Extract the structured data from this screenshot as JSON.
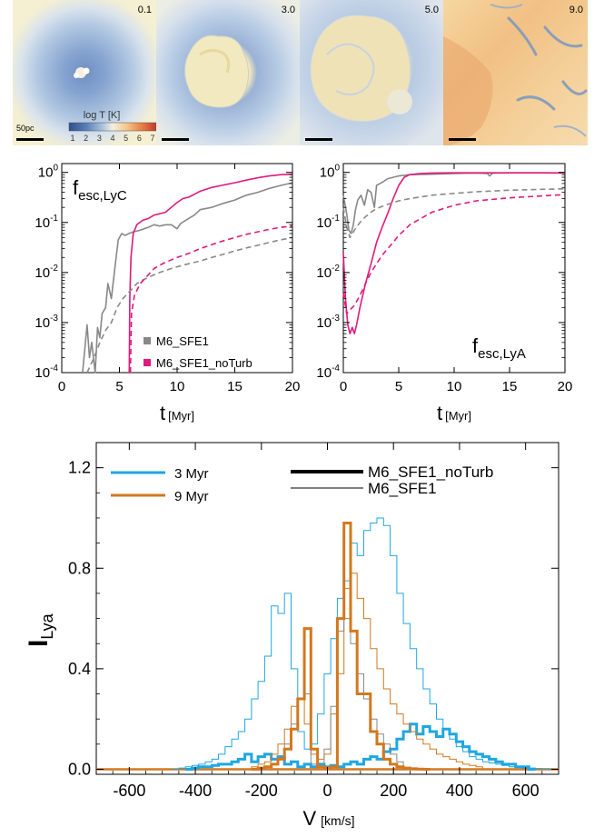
{
  "panels": [
    {
      "time_label": "0.1",
      "scalebar_label": "50pc"
    },
    {
      "time_label": "3.0",
      "scalebar_label": ""
    },
    {
      "time_label": "5.0",
      "scalebar_label": ""
    },
    {
      "time_label": "9.0",
      "scalebar_label": ""
    }
  ],
  "colorbar": {
    "title": "log T [K]",
    "ticks": [
      "1",
      "2",
      "3",
      "4",
      "5",
      "6",
      "7"
    ],
    "colors": [
      "#2f4f8f",
      "#5b7fb8",
      "#a9c1dc",
      "#f3f0dc",
      "#f4c78a",
      "#e8804a",
      "#c23b2b"
    ]
  },
  "colors": {
    "gray": "#888888",
    "magenta": "#e0197d",
    "cyan": "#1ea7e1",
    "orange": "#d2781e",
    "panel_blue": "#bcd0e6",
    "panel_cream": "#f3eed2",
    "panel_orange": "#f2c48a"
  },
  "chart_data": [
    {
      "type": "line",
      "name_label": "f",
      "name_sub": "esc,LyC",
      "xlabel": "t",
      "xunit": "[Myr]",
      "xlim": [
        0,
        20
      ],
      "ylim": [
        0.0001,
        1.5
      ],
      "yscale": "log",
      "xticks": [
        0,
        5,
        10,
        15,
        20
      ],
      "yticks": [
        {
          "value": 1,
          "base": "10",
          "exp": "0"
        },
        {
          "value": 0.1,
          "base": "10",
          "exp": "-1"
        },
        {
          "value": 0.01,
          "base": "10",
          "exp": "-2"
        },
        {
          "value": 0.001,
          "base": "10",
          "exp": "-3"
        },
        {
          "value": 0.0001,
          "base": "10",
          "exp": "-4"
        }
      ],
      "legend": [
        {
          "label": "M6_SFE1",
          "color": "#888888"
        },
        {
          "label": "M6_SFE1_noTurb",
          "color": "#e0197d"
        }
      ],
      "series": [
        {
          "style": "solid",
          "color": "#888888",
          "x": [
            1.8,
            2.2,
            2.4,
            2.6,
            2.9,
            3.1,
            3.3,
            3.5,
            3.8,
            4.0,
            4.3,
            4.6,
            4.9,
            5.2,
            5.5,
            5.8,
            6.2,
            6.8,
            7.5,
            8.0,
            8.5,
            9.0,
            9.5,
            10.0,
            10.3,
            11.0,
            11.5,
            12.0,
            13.0,
            14.0,
            15.0,
            16.0,
            17.0,
            18.0,
            19.0,
            20.0
          ],
          "y": [
            0.0001,
            0.0009,
            0.0002,
            0.0004,
            0.0001,
            0.0008,
            0.0005,
            0.0015,
            0.002,
            0.006,
            0.003,
            0.012,
            0.045,
            0.06,
            0.055,
            0.06,
            0.065,
            0.07,
            0.08,
            0.09,
            0.085,
            0.09,
            0.09,
            0.075,
            0.095,
            0.12,
            0.14,
            0.18,
            0.2,
            0.24,
            0.28,
            0.35,
            0.4,
            0.48,
            0.55,
            0.62
          ]
        },
        {
          "style": "solid",
          "color": "#e0197d",
          "x": [
            5.85,
            5.9,
            6.0,
            6.2,
            6.5,
            7.0,
            7.5,
            8.0,
            8.5,
            9.0,
            9.5,
            10.0,
            10.5,
            11.0,
            12.0,
            13.0,
            14.0,
            15.0,
            16.0,
            17.0,
            18.0,
            19.0,
            20.0
          ],
          "y": [
            0.0001,
            0.003,
            0.02,
            0.06,
            0.09,
            0.11,
            0.12,
            0.14,
            0.15,
            0.16,
            0.2,
            0.25,
            0.3,
            0.32,
            0.42,
            0.5,
            0.56,
            0.62,
            0.7,
            0.78,
            0.85,
            0.9,
            0.92
          ]
        },
        {
          "style": "dashed",
          "color": "#888888",
          "x": [
            2.2,
            2.8,
            3.3,
            3.8,
            4.3,
            4.8,
            5.3,
            5.8,
            6.5,
            7.0,
            7.5,
            8.0,
            8.5,
            9.0,
            9.5,
            10.0,
            11.0,
            12.0,
            13.0,
            14.0,
            15.0,
            16.0,
            17.0,
            18.0,
            19.0,
            20.0
          ],
          "y": [
            0.0001,
            0.0002,
            0.0004,
            0.0007,
            0.001,
            0.002,
            0.003,
            0.004,
            0.006,
            0.007,
            0.008,
            0.009,
            0.01,
            0.011,
            0.012,
            0.013,
            0.015,
            0.017,
            0.02,
            0.023,
            0.027,
            0.031,
            0.035,
            0.04,
            0.045,
            0.05
          ]
        },
        {
          "style": "dashed",
          "color": "#e0197d",
          "x": [
            5.95,
            6.05,
            6.3,
            6.8,
            7.5,
            8.0,
            8.5,
            9.0,
            10.0,
            11.0,
            12.0,
            13.0,
            14.0,
            15.0,
            16.0,
            17.0,
            18.0,
            19.0,
            20.0
          ],
          "y": [
            0.0001,
            0.0015,
            0.0035,
            0.006,
            0.009,
            0.012,
            0.014,
            0.016,
            0.02,
            0.024,
            0.03,
            0.036,
            0.043,
            0.05,
            0.058,
            0.065,
            0.073,
            0.08,
            0.085
          ]
        }
      ]
    },
    {
      "type": "line",
      "name_label": "f",
      "name_sub": "esc,LyA",
      "xlabel": "t",
      "xunit": "[Myr]",
      "xlim": [
        0,
        20
      ],
      "ylim": [
        0.0001,
        1.5
      ],
      "yscale": "log",
      "xticks": [
        0,
        5,
        10,
        15,
        20
      ],
      "yticks": [
        {
          "value": 1,
          "base": "10",
          "exp": "0"
        },
        {
          "value": 0.1,
          "base": "10",
          "exp": "-1"
        },
        {
          "value": 0.01,
          "base": "10",
          "exp": "-2"
        },
        {
          "value": 0.001,
          "base": "10",
          "exp": "-3"
        },
        {
          "value": 0.0001,
          "base": "10",
          "exp": "-4"
        }
      ],
      "series": [
        {
          "style": "solid",
          "color": "#888888",
          "x": [
            0.0,
            0.3,
            0.5,
            0.7,
            0.9,
            1.1,
            1.3,
            1.6,
            1.9,
            2.2,
            2.5,
            2.8,
            3.0,
            3.3,
            3.6,
            4.0,
            5.0,
            6.0,
            8.0,
            10.0,
            12.0,
            13.0,
            13.2,
            13.5,
            15.0,
            18.0,
            20.0
          ],
          "y": [
            0.35,
            0.15,
            0.07,
            0.06,
            0.09,
            0.18,
            0.28,
            0.35,
            0.22,
            0.45,
            0.4,
            0.2,
            0.55,
            0.6,
            0.65,
            0.75,
            0.85,
            0.9,
            0.92,
            0.95,
            0.97,
            0.95,
            0.85,
            0.97,
            0.98,
            0.98,
            0.97
          ]
        },
        {
          "style": "solid",
          "color": "#e0197d",
          "x": [
            0.0,
            0.2,
            0.4,
            0.6,
            0.8,
            1.0,
            1.2,
            1.5,
            2.0,
            2.5,
            3.0,
            3.5,
            4.0,
            4.5,
            5.0,
            5.5,
            6.0,
            7.0,
            8.0,
            10.0,
            12.0,
            15.0,
            20.0
          ],
          "y": [
            0.025,
            0.003,
            0.0009,
            0.0006,
            0.0008,
            0.0006,
            0.0009,
            0.002,
            0.006,
            0.015,
            0.04,
            0.08,
            0.15,
            0.3,
            0.55,
            0.8,
            0.9,
            0.95,
            0.97,
            0.98,
            0.98,
            0.98,
            0.98
          ]
        },
        {
          "style": "dashed",
          "color": "#888888",
          "x": [
            0.0,
            0.3,
            0.6,
            1.0,
            1.5,
            2.0,
            2.5,
            3.0,
            4.0,
            5.0,
            6.0,
            8.0,
            10.0,
            12.0,
            15.0,
            18.0,
            20.0
          ],
          "y": [
            0.2,
            0.08,
            0.05,
            0.07,
            0.1,
            0.13,
            0.16,
            0.19,
            0.23,
            0.27,
            0.3,
            0.35,
            0.38,
            0.41,
            0.44,
            0.46,
            0.47
          ]
        },
        {
          "style": "dashed",
          "color": "#e0197d",
          "x": [
            0.0,
            0.3,
            0.6,
            1.0,
            1.5,
            2.0,
            2.5,
            3.0,
            3.5,
            4.0,
            4.5,
            5.0,
            5.5,
            6.0,
            7.0,
            8.0,
            10.0,
            12.0,
            15.0,
            18.0,
            20.0
          ],
          "y": [
            0.004,
            0.0015,
            0.0018,
            0.0022,
            0.0035,
            0.006,
            0.01,
            0.015,
            0.022,
            0.03,
            0.04,
            0.055,
            0.07,
            0.09,
            0.12,
            0.16,
            0.22,
            0.27,
            0.31,
            0.34,
            0.36
          ]
        }
      ]
    },
    {
      "type": "line",
      "ylabel": "I",
      "ylabel_sub": "Lya",
      "xlabel": "V",
      "xunit": "[km/s]",
      "xlim": [
        -700,
        700
      ],
      "ylim": [
        -0.02,
        1.3
      ],
      "xticks": [
        -600,
        -400,
        -200,
        0,
        200,
        400,
        600
      ],
      "yticks": [
        {
          "value": 0.0,
          "label": "0.0"
        },
        {
          "value": 0.4,
          "label": "0.4"
        },
        {
          "value": 0.8,
          "label": "0.8"
        },
        {
          "value": 1.2,
          "label": "1.2"
        }
      ],
      "legend_colors": [
        {
          "label": "3 Myr",
          "color": "#1ea7e1"
        },
        {
          "label": "9 Myr",
          "color": "#d2781e"
        }
      ],
      "legend_styles": [
        {
          "label": "M6_SFE1_noTurb",
          "width": "thick"
        },
        {
          "label": "M6_SFE1",
          "width": "thin"
        }
      ],
      "series": [
        {
          "color": "#1ea7e1",
          "width": "thin",
          "bin_width": 20,
          "x": [
            -460,
            -440,
            -420,
            -400,
            -380,
            -360,
            -340,
            -320,
            -300,
            -280,
            -260,
            -240,
            -220,
            -200,
            -180,
            -160,
            -140,
            -120,
            -100,
            -80,
            -60,
            -40,
            -20,
            0,
            20,
            40,
            60,
            80,
            100,
            120,
            140,
            160,
            180,
            200,
            220,
            240,
            260,
            280,
            300,
            320,
            340,
            360,
            380,
            400,
            420,
            440,
            460,
            480,
            500,
            520,
            540,
            560,
            580,
            600,
            620,
            640,
            660,
            680
          ],
          "y": [
            0.0,
            0.005,
            0.01,
            0.015,
            0.02,
            0.03,
            0.04,
            0.06,
            0.09,
            0.12,
            0.15,
            0.2,
            0.28,
            0.35,
            0.45,
            0.65,
            0.62,
            0.7,
            0.4,
            0.15,
            0.08,
            0.1,
            0.22,
            0.38,
            0.52,
            0.68,
            0.75,
            0.9,
            0.85,
            0.95,
            0.98,
            1.0,
            0.97,
            0.85,
            0.7,
            0.58,
            0.48,
            0.4,
            0.32,
            0.26,
            0.2,
            0.16,
            0.12,
            0.09,
            0.07,
            0.05,
            0.04,
            0.03,
            0.025,
            0.02,
            0.015,
            0.01,
            0.01,
            0.005,
            0.005,
            0.003,
            0.002,
            0.0
          ]
        },
        {
          "color": "#1ea7e1",
          "width": "thick",
          "bin_width": 20,
          "x": [
            -420,
            -400,
            -380,
            -360,
            -340,
            -320,
            -300,
            -280,
            -260,
            -240,
            -220,
            -200,
            -180,
            -160,
            -140,
            -120,
            -100,
            -80,
            -60,
            -40,
            -20,
            0,
            20,
            40,
            60,
            80,
            100,
            120,
            140,
            160,
            180,
            200,
            220,
            240,
            260,
            280,
            300,
            320,
            340,
            360,
            380,
            400,
            420,
            440,
            460,
            480,
            500,
            520,
            540,
            560,
            580,
            600,
            620
          ],
          "y": [
            0.0,
            0.005,
            0.01,
            0.01,
            0.015,
            0.02,
            0.02,
            0.03,
            0.04,
            0.06,
            0.03,
            0.05,
            0.06,
            0.04,
            0.05,
            0.02,
            0.03,
            0.01,
            0.02,
            0.01,
            0.02,
            0.01,
            0.015,
            0.01,
            0.02,
            0.03,
            0.02,
            0.04,
            0.05,
            0.04,
            0.07,
            0.08,
            0.12,
            0.15,
            0.18,
            0.14,
            0.17,
            0.15,
            0.13,
            0.16,
            0.14,
            0.11,
            0.09,
            0.07,
            0.06,
            0.05,
            0.04,
            0.03,
            0.02,
            0.02,
            0.01,
            0.01,
            0.0
          ]
        },
        {
          "color": "#d2781e",
          "width": "thin",
          "bin_width": 20,
          "x": [
            -240,
            -220,
            -200,
            -180,
            -160,
            -140,
            -120,
            -100,
            -80,
            -60,
            -40,
            -20,
            0,
            20,
            40,
            60,
            80,
            100,
            120,
            140,
            160,
            180,
            200,
            220,
            240,
            260,
            280,
            300,
            320,
            340,
            360,
            380,
            400,
            420,
            440,
            460,
            480
          ],
          "y": [
            0.0,
            0.01,
            0.02,
            0.03,
            0.06,
            0.1,
            0.16,
            0.25,
            0.28,
            0.18,
            0.06,
            0.04,
            0.06,
            0.22,
            0.38,
            0.72,
            0.78,
            0.68,
            0.6,
            0.48,
            0.4,
            0.32,
            0.26,
            0.22,
            0.18,
            0.15,
            0.12,
            0.1,
            0.08,
            0.06,
            0.05,
            0.04,
            0.03,
            0.02,
            0.015,
            0.01,
            0.0
          ]
        },
        {
          "color": "#888888",
          "width": "thin",
          "bin_width": 20,
          "x": [
            -200,
            -180,
            -160,
            -140,
            -120,
            -100,
            -80,
            -60,
            -40,
            -20,
            0,
            20,
            40,
            60,
            80,
            100,
            120,
            140,
            160,
            180,
            200,
            220,
            240
          ],
          "y": [
            0.0,
            0.01,
            0.02,
            0.05,
            0.1,
            0.18,
            0.28,
            0.3,
            0.02,
            0.01,
            0.08,
            0.25,
            0.55,
            0.6,
            0.5,
            0.38,
            0.28,
            0.2,
            0.14,
            0.1,
            0.06,
            0.03,
            0.0
          ]
        },
        {
          "color": "#d2781e",
          "width": "thick",
          "bin_width": 20,
          "x": [
            -220,
            -200,
            -180,
            -160,
            -140,
            -120,
            -100,
            -80,
            -60,
            -40,
            -20,
            0,
            20,
            40,
            60,
            80,
            100,
            120,
            140,
            160,
            180,
            200,
            220,
            240,
            260,
            280,
            300
          ],
          "y": [
            0.0,
            0.005,
            0.01,
            0.02,
            0.04,
            0.08,
            0.16,
            0.28,
            0.56,
            0.08,
            0.01,
            0.005,
            0.01,
            0.6,
            0.98,
            0.55,
            0.3,
            0.3,
            0.15,
            0.1,
            0.04,
            0.02,
            0.01,
            0.005,
            0.002,
            0.001,
            0.0
          ]
        }
      ]
    }
  ]
}
